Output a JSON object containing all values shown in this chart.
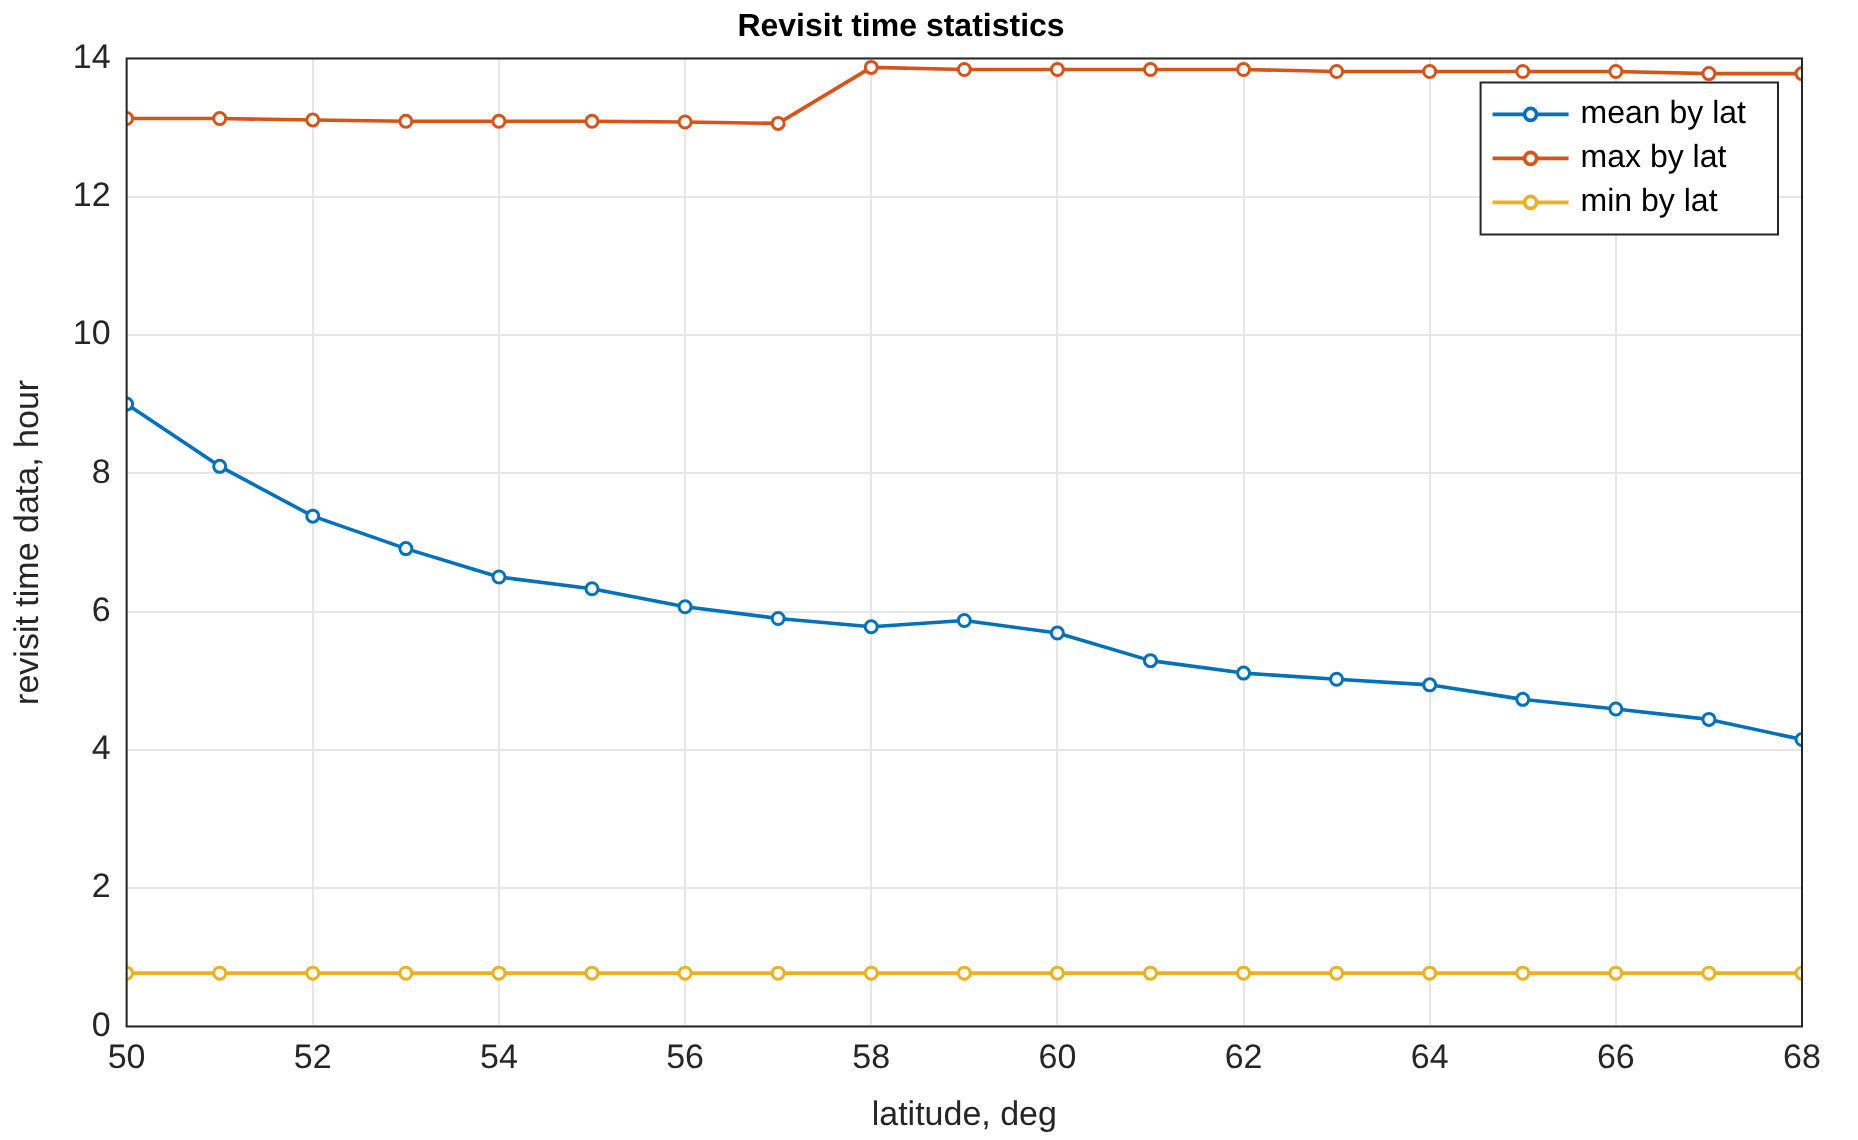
{
  "chart_data": {
    "type": "line",
    "title": "Revisit time statistics",
    "xlabel": "latitude, deg",
    "ylabel": "revisit time data, hour",
    "x": [
      50,
      51,
      52,
      53,
      54,
      55,
      56,
      57,
      58,
      59,
      60,
      61,
      62,
      63,
      64,
      65,
      66,
      67,
      68
    ],
    "series": [
      {
        "name": "mean by lat",
        "color": "#0072bd",
        "values": [
          9.0,
          8.1,
          7.38,
          6.91,
          6.5,
          6.33,
          6.07,
          5.9,
          5.78,
          5.87,
          5.69,
          5.29,
          5.11,
          5.02,
          4.94,
          4.73,
          4.59,
          4.44,
          4.15
        ]
      },
      {
        "name": "max by lat",
        "color": "#d95319",
        "values": [
          13.13,
          13.13,
          13.11,
          13.09,
          13.09,
          13.09,
          13.08,
          13.06,
          13.87,
          13.84,
          13.84,
          13.84,
          13.84,
          13.81,
          13.81,
          13.81,
          13.81,
          13.78,
          13.78
        ]
      },
      {
        "name": "min by lat",
        "color": "#edb120",
        "values": [
          0.77,
          0.77,
          0.77,
          0.77,
          0.77,
          0.77,
          0.77,
          0.77,
          0.77,
          0.77,
          0.77,
          0.77,
          0.77,
          0.77,
          0.77,
          0.77,
          0.77,
          0.77,
          0.77
        ]
      }
    ],
    "xlim": [
      50,
      68
    ],
    "xticks": [
      50,
      52,
      54,
      56,
      58,
      60,
      62,
      64,
      66,
      68
    ],
    "ylim": [
      0,
      14
    ],
    "yticks": [
      0,
      2,
      4,
      6,
      8,
      10,
      12,
      14
    ],
    "grid": true,
    "legend": "top right",
    "marker": "circle",
    "line_style": "solid"
  }
}
